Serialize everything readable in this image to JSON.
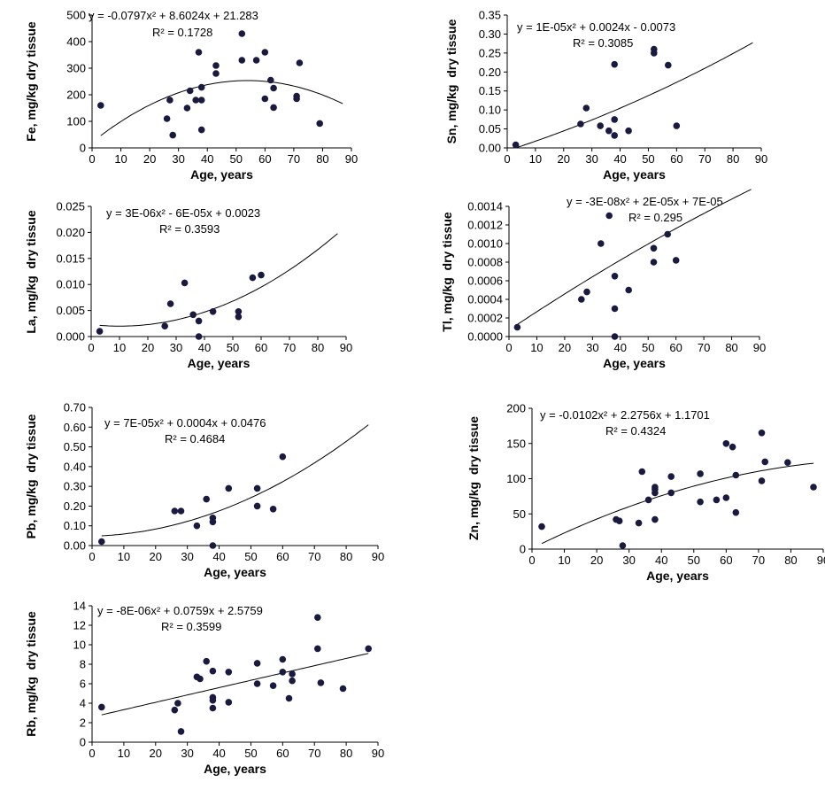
{
  "chart_data": [
    {
      "id": "fe",
      "type": "scatter",
      "ylabel": "Fe, mg/kg dry tissue",
      "xlabel": "Age, years",
      "equation": "y = -0.0797x² + 8.6024x + 21.283",
      "r2": "R² = 0.1728",
      "xlim": [
        0,
        90
      ],
      "ylim": [
        0,
        500
      ],
      "xticks": [
        "0",
        "10",
        "20",
        "30",
        "40",
        "50",
        "60",
        "70",
        "80",
        "90"
      ],
      "yticks": [
        "0",
        "100",
        "200",
        "300",
        "400",
        "500"
      ],
      "trend": {
        "a": -0.0797,
        "b": 8.6024,
        "c": 21.283,
        "x0": 3,
        "x1": 87
      },
      "points": [
        [
          3,
          160
        ],
        [
          26,
          110
        ],
        [
          27,
          180
        ],
        [
          28,
          48
        ],
        [
          33,
          150
        ],
        [
          34,
          215
        ],
        [
          36,
          180
        ],
        [
          37,
          360
        ],
        [
          38,
          180
        ],
        [
          38,
          228
        ],
        [
          38,
          68
        ],
        [
          43,
          280
        ],
        [
          43,
          310
        ],
        [
          52,
          430
        ],
        [
          52,
          330
        ],
        [
          57,
          330
        ],
        [
          60,
          360
        ],
        [
          60,
          185
        ],
        [
          62,
          255
        ],
        [
          63,
          225
        ],
        [
          63,
          152
        ],
        [
          71,
          195
        ],
        [
          71,
          185
        ],
        [
          72,
          320
        ],
        [
          79,
          92
        ]
      ],
      "color": "#1a1a40"
    },
    {
      "id": "sn",
      "type": "scatter",
      "ylabel": "Sn, mg/kg  dry tissue",
      "xlabel": "Age, years",
      "equation": "y = 1E-05x² + 0.0024x - 0.0073",
      "r2": "R² = 0.3085",
      "xlim": [
        0,
        90
      ],
      "ylim": [
        0,
        0.35
      ],
      "xticks": [
        "0",
        "10",
        "20",
        "30",
        "40",
        "50",
        "60",
        "70",
        "80",
        "90"
      ],
      "yticks": [
        "0.00",
        "0.05",
        "0.10",
        "0.15",
        "0.20",
        "0.25",
        "0.30",
        "0.35"
      ],
      "trend": {
        "a": 1e-05,
        "b": 0.0024,
        "c": -0.0073,
        "x0": 3,
        "x1": 87
      },
      "points": [
        [
          3,
          0.008
        ],
        [
          26,
          0.063
        ],
        [
          28,
          0.105
        ],
        [
          33,
          0.058
        ],
        [
          36,
          0.045
        ],
        [
          38,
          0.22
        ],
        [
          38,
          0.075
        ],
        [
          38,
          0.033
        ],
        [
          43,
          0.045
        ],
        [
          52,
          0.26
        ],
        [
          52,
          0.25
        ],
        [
          57,
          0.218
        ],
        [
          60,
          0.058
        ]
      ],
      "color": "#1a1a40"
    },
    {
      "id": "la",
      "type": "scatter",
      "ylabel": "La, mg/kg  dry tissue",
      "xlabel": "Age, years",
      "equation": "y = 3E-06x² - 6E-05x + 0.0023",
      "r2": "R² = 0.3593",
      "xlim": [
        0,
        90
      ],
      "ylim": [
        0,
        0.025
      ],
      "xticks": [
        "0",
        "10",
        "20",
        "30",
        "40",
        "50",
        "60",
        "70",
        "80",
        "90"
      ],
      "yticks": [
        "0.000",
        "0.005",
        "0.010",
        "0.015",
        "0.020",
        "0.025"
      ],
      "trend": {
        "a": 3e-06,
        "b": -6e-05,
        "c": 0.0023,
        "x0": 3,
        "x1": 87
      },
      "points": [
        [
          3,
          0.001
        ],
        [
          26,
          0.002
        ],
        [
          28,
          0.0063
        ],
        [
          33,
          0.0103
        ],
        [
          36,
          0.0042
        ],
        [
          38,
          0.003
        ],
        [
          38,
          0.0
        ],
        [
          43,
          0.0048
        ],
        [
          52,
          0.0048
        ],
        [
          52,
          0.0038
        ],
        [
          57,
          0.0113
        ],
        [
          60,
          0.0118
        ]
      ],
      "color": "#1a1a40"
    },
    {
      "id": "tl",
      "type": "scatter",
      "ylabel": "Tl, mg/kg  dry tissue",
      "xlabel": "Age, years",
      "equation": "y = -3E-08x² + 2E-05x + 7E-05",
      "r2": "R² = 0.295",
      "xlim": [
        0,
        90
      ],
      "ylim": [
        0,
        0.0014
      ],
      "xticks": [
        "0",
        "10",
        "20",
        "30",
        "40",
        "50",
        "60",
        "70",
        "80",
        "90"
      ],
      "yticks": [
        "0.0000",
        "0.0002",
        "0.0004",
        "0.0006",
        "0.0008",
        "0.0010",
        "0.0012",
        "0.0014"
      ],
      "trend": {
        "a": -3e-08,
        "b": 2e-05,
        "c": 7e-05,
        "x0": 3,
        "x1": 87
      },
      "points": [
        [
          3,
          0.0001
        ],
        [
          26,
          0.0004
        ],
        [
          28,
          0.00048
        ],
        [
          33,
          0.001
        ],
        [
          36,
          0.0013
        ],
        [
          38,
          0.00065
        ],
        [
          38,
          0.0003
        ],
        [
          38,
          0.0
        ],
        [
          43,
          0.0005
        ],
        [
          52,
          0.00095
        ],
        [
          52,
          0.0008
        ],
        [
          57,
          0.0011
        ],
        [
          60,
          0.00082
        ]
      ],
      "color": "#1a1a40"
    },
    {
      "id": "pb",
      "type": "scatter",
      "ylabel": "Pb, mg/kg  dry tissue",
      "xlabel": "Age, years",
      "equation": "y = 7E-05x² + 0.0004x + 0.0476",
      "r2": "R² = 0.4684",
      "xlim": [
        0,
        90
      ],
      "ylim": [
        0,
        0.7
      ],
      "xticks": [
        "0",
        "10",
        "20",
        "30",
        "40",
        "50",
        "60",
        "70",
        "80",
        "90"
      ],
      "yticks": [
        "0.00",
        "0.10",
        "0.20",
        "0.30",
        "0.40",
        "0.50",
        "0.60",
        "0.70"
      ],
      "trend": {
        "a": 7e-05,
        "b": 0.0004,
        "c": 0.0476,
        "x0": 3,
        "x1": 87
      },
      "points": [
        [
          3,
          0.02
        ],
        [
          26,
          0.175
        ],
        [
          28,
          0.175
        ],
        [
          33,
          0.1
        ],
        [
          36,
          0.235
        ],
        [
          38,
          0.14
        ],
        [
          38,
          0.12
        ],
        [
          38,
          0.0
        ],
        [
          43,
          0.29
        ],
        [
          52,
          0.29
        ],
        [
          52,
          0.2
        ],
        [
          57,
          0.185
        ],
        [
          60,
          0.45
        ]
      ],
      "color": "#1a1a40"
    },
    {
      "id": "zn",
      "type": "scatter",
      "ylabel": "Zn, mg/kg  dry tissue",
      "xlabel": "Age, years",
      "equation": "y = -0.0102x² + 2.2756x + 1.1701",
      "r2": "R² = 0.4324",
      "xlim": [
        0,
        90
      ],
      "ylim": [
        0,
        200
      ],
      "xticks": [
        "0",
        "10",
        "20",
        "30",
        "40",
        "50",
        "60",
        "70",
        "80",
        "90"
      ],
      "yticks": [
        "0",
        "50",
        "100",
        "150",
        "200"
      ],
      "trend": {
        "a": -0.0102,
        "b": 2.2756,
        "c": 1.1701,
        "x0": 3,
        "x1": 87
      },
      "points": [
        [
          3,
          32
        ],
        [
          26,
          42
        ],
        [
          27,
          40
        ],
        [
          28,
          5
        ],
        [
          33,
          37
        ],
        [
          34,
          110
        ],
        [
          36,
          70
        ],
        [
          38,
          42
        ],
        [
          38,
          80
        ],
        [
          38,
          85
        ],
        [
          38,
          88
        ],
        [
          43,
          103
        ],
        [
          43,
          80
        ],
        [
          52,
          107
        ],
        [
          52,
          67
        ],
        [
          57,
          70
        ],
        [
          60,
          150
        ],
        [
          60,
          73
        ],
        [
          62,
          145
        ],
        [
          63,
          105
        ],
        [
          63,
          52
        ],
        [
          71,
          165
        ],
        [
          71,
          97
        ],
        [
          72,
          124
        ],
        [
          79,
          123
        ],
        [
          87,
          88
        ]
      ],
      "color": "#1a1a40"
    },
    {
      "id": "rb",
      "type": "scatter",
      "ylabel": "Rb, mg/kg  dry tissue",
      "xlabel": "Age, years",
      "equation": "y = -8E-06x² + 0.0759x + 2.5759",
      "r2": "R² = 0.3599",
      "xlim": [
        0,
        90
      ],
      "ylim": [
        0,
        14
      ],
      "xticks": [
        "0",
        "10",
        "20",
        "30",
        "40",
        "50",
        "60",
        "70",
        "80",
        "90"
      ],
      "yticks": [
        "0",
        "2",
        "4",
        "6",
        "8",
        "10",
        "12",
        "14"
      ],
      "trend": {
        "a": -8e-06,
        "b": 0.0759,
        "c": 2.5759,
        "x0": 3,
        "x1": 87
      },
      "points": [
        [
          3,
          3.6
        ],
        [
          26,
          3.3
        ],
        [
          27,
          4.0
        ],
        [
          28,
          1.1
        ],
        [
          33,
          6.7
        ],
        [
          34,
          6.5
        ],
        [
          36,
          8.3
        ],
        [
          38,
          7.3
        ],
        [
          38,
          4.6
        ],
        [
          38,
          4.3
        ],
        [
          38,
          3.5
        ],
        [
          43,
          7.2
        ],
        [
          43,
          4.1
        ],
        [
          52,
          8.1
        ],
        [
          52,
          6.0
        ],
        [
          57,
          5.8
        ],
        [
          60,
          8.5
        ],
        [
          60,
          7.2
        ],
        [
          62,
          4.5
        ],
        [
          63,
          7.0
        ],
        [
          63,
          6.3
        ],
        [
          71,
          12.8
        ],
        [
          71,
          9.6
        ],
        [
          72,
          6.1
        ],
        [
          79,
          5.5
        ],
        [
          87,
          9.6
        ]
      ],
      "color": "#1a1a40"
    }
  ]
}
